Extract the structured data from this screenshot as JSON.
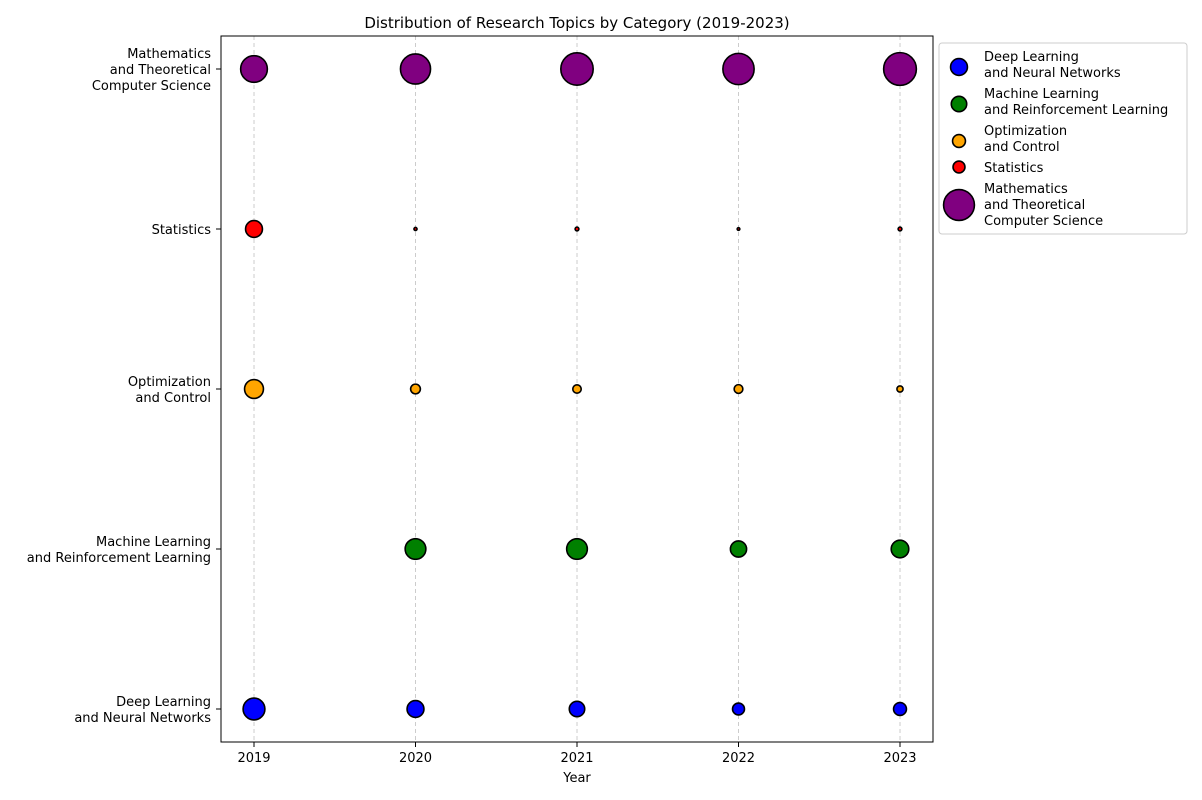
{
  "chart_data": {
    "type": "scatter",
    "title": "Distribution of Research Topics by Category (2019-2023)",
    "xlabel": "Year",
    "ylabel": "",
    "x": [
      "2019",
      "2020",
      "2021",
      "2022",
      "2023"
    ],
    "categories": [
      {
        "label": [
          "Deep Learning",
          "and Neural Networks"
        ]
      },
      {
        "label": [
          "Machine Learning",
          "and Reinforcement Learning"
        ]
      },
      {
        "label": [
          "Optimization",
          "and Control"
        ]
      },
      {
        "label": [
          "Statistics"
        ]
      },
      {
        "label": [
          "Mathematics",
          "and Theoretical",
          "Computer Science"
        ]
      }
    ],
    "series": [
      {
        "name_lines": [
          "Deep Learning",
          "and Neural Networks"
        ],
        "color": "#0000ff",
        "values": [
          10,
          6,
          5,
          3,
          3.5
        ]
      },
      {
        "name_lines": [
          "Machine Learning",
          "and Reinforcement Learning"
        ],
        "color": "#008000",
        "values": [
          0,
          9,
          9,
          5.5,
          6.5
        ]
      },
      {
        "name_lines": [
          "Optimization",
          "and Control"
        ],
        "color": "#ffa500",
        "values": [
          7.5,
          2,
          1.5,
          1.6,
          0.8
        ]
      },
      {
        "name_lines": [
          "Statistics"
        ],
        "color": "#ff0000",
        "values": [
          6,
          0.2,
          0.3,
          0.15,
          0.3
        ]
      },
      {
        "name_lines": [
          "Mathematics",
          "and Theoretical",
          "Computer Science"
        ],
        "color": "#800080",
        "values": [
          15,
          19,
          22,
          20.5,
          22.5
        ]
      }
    ],
    "legend_marker_values": [
      6,
      5,
      3.5,
      3,
      20
    ],
    "grid": "x-only dashed",
    "legend_position": "outside top-right"
  }
}
